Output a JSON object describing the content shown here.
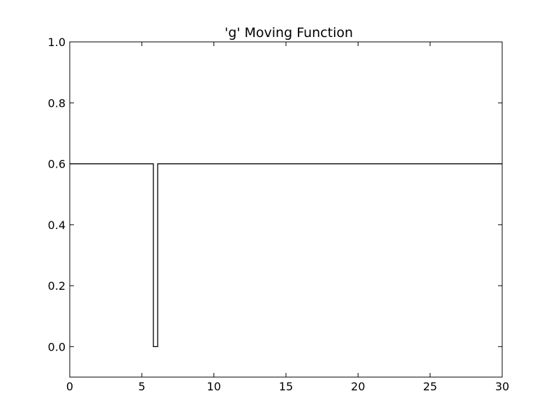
{
  "chart_data": {
    "type": "line",
    "title": "'g' Moving Function",
    "xlabel": "",
    "ylabel": "",
    "xlim": [
      0,
      30
    ],
    "ylim": [
      -0.1,
      1.0
    ],
    "grid": false,
    "x_ticks": [
      {
        "value": 0,
        "label": "0"
      },
      {
        "value": 5,
        "label": "5"
      },
      {
        "value": 10,
        "label": "10"
      },
      {
        "value": 15,
        "label": "15"
      },
      {
        "value": 20,
        "label": "20"
      },
      {
        "value": 25,
        "label": "25"
      },
      {
        "value": 30,
        "label": "30"
      }
    ],
    "y_ticks": [
      {
        "value": 0.0,
        "label": "0.0"
      },
      {
        "value": 0.2,
        "label": "0.2"
      },
      {
        "value": 0.4,
        "label": "0.4"
      },
      {
        "value": 0.6,
        "label": "0.6"
      },
      {
        "value": 0.8,
        "label": "0.8"
      },
      {
        "value": 1.0,
        "label": "1.0"
      }
    ],
    "series": [
      {
        "color": "#000000",
        "step": true,
        "x": [
          0,
          5.8,
          5.8,
          6.1,
          6.1,
          30
        ],
        "y": [
          0.6,
          0.6,
          0.0,
          0.0,
          0.6,
          0.6
        ]
      }
    ]
  }
}
